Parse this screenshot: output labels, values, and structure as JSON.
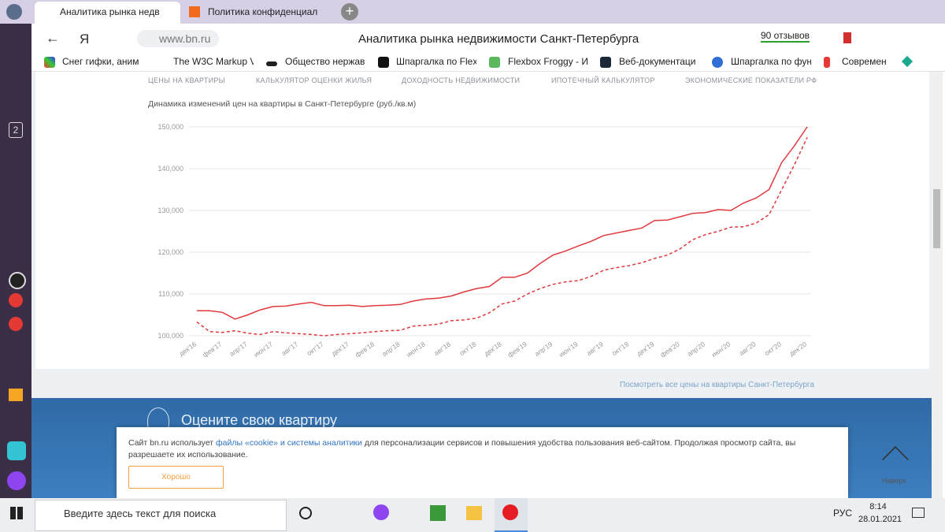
{
  "tabs": [
    "Аналитика рынка недв",
    "Политика конфиденциал"
  ],
  "sidebar_badge": "2",
  "address": {
    "yandex": "Я",
    "url": "www.bn.ru",
    "page_title": "Аналитика рынка недвижимости Санкт-Петербурга",
    "reviews": "90 отзывов"
  },
  "bookmarks": [
    "Снег гифки, аним",
    "The W3C Markup V",
    "Общество нержав",
    "Шпаргалка по Flex",
    "Flexbox Froggy - И",
    "Веб-документаци",
    "Шпаргалка по функц",
    "Современ"
  ],
  "site_nav": [
    "ЦЕНЫ НА КВАРТИРЫ",
    "КАЛЬКУЛЯТОР ОЦЕНКИ ЖИЛЬЯ",
    "ДОХОДНОСТЬ НЕДВИЖИМОСТИ",
    "ИПОТЕЧНЫЙ КАЛЬКУЛЯТОР",
    "ЭКОНОМИЧЕСКИЕ ПОКАЗАТЕЛИ РФ"
  ],
  "chart_data": {
    "type": "line",
    "title": "Динамика изменений цен на квартиры в Санкт-Петербурге (руб./кв.м)",
    "categories": [
      "дек'16",
      null,
      "фев'17",
      null,
      "апр'17",
      null,
      "июн'17",
      null,
      "авг'17",
      null,
      "окт'17",
      null,
      "дек'17",
      null,
      "фев'18",
      null,
      "апр'18",
      null,
      "июн'18",
      null,
      "авг'18",
      null,
      "окт'18",
      null,
      "дек'18",
      null,
      "фев'19",
      null,
      "апр'19",
      null,
      "июн'19",
      null,
      "авг'19",
      null,
      "окт'19",
      null,
      "дек'19",
      null,
      "фев'20",
      null,
      "апр'20",
      null,
      "июн'20",
      null,
      "авг'20",
      null,
      "окт'20",
      null,
      "дек'20"
    ],
    "series": [
      {
        "color": "#e0393e",
        "dashed": false,
        "values": [
          106000,
          106000,
          105600,
          104000,
          105000,
          106200,
          107000,
          107100,
          107600,
          108000,
          107200,
          107200,
          107300,
          107000,
          107200,
          107300,
          107500,
          108300,
          108800,
          109000,
          109500,
          110500,
          111300,
          111800,
          114000,
          114000,
          115000,
          117300,
          119300,
          120300,
          121500,
          122600,
          124000,
          124600,
          125200,
          125800,
          127600,
          127700,
          128500,
          129300,
          129500,
          130200,
          130000,
          131800,
          133000,
          135000,
          141500,
          145500,
          150000
        ]
      },
      {
        "color": "#e0393e",
        "dashed": true,
        "values": [
          103300,
          101000,
          100800,
          101200,
          100600,
          100300,
          101000,
          100700,
          100500,
          100300,
          100000,
          100300,
          100500,
          100700,
          101000,
          101200,
          101300,
          102300,
          102500,
          102800,
          103600,
          103800,
          104200,
          105500,
          107600,
          108300,
          110000,
          111300,
          112300,
          112900,
          113200,
          114200,
          115700,
          116300,
          116800,
          117500,
          118500,
          119300,
          120800,
          123000,
          124200,
          125000,
          126000,
          126100,
          127000,
          129000,
          135000,
          141000,
          147500
        ]
      }
    ],
    "ylim": [
      100000,
      150000
    ],
    "yticks": [
      {
        "value": 100000,
        "label": "100,000"
      },
      {
        "value": 110000,
        "label": "110,000"
      },
      {
        "value": 120000,
        "label": "120,000"
      },
      {
        "value": 130000,
        "label": "130,000"
      },
      {
        "value": 140000,
        "label": "140,000"
      },
      {
        "value": 150000,
        "label": "150,000"
      }
    ],
    "grid": true
  },
  "all_prices_link": "Посмотреть все цены на квартиры Санкт-Петербурга",
  "banner": "Оцените свою квартиру",
  "cookie": {
    "before": "Сайт bn.ru использует ",
    "link": "файлы «cookie» и системы аналитики",
    "after": " для персонализации сервисов и повышения удобства пользования веб-сайтом. Продолжая просмотр сайта, вы разрешаете их использование.",
    "button": "Хорошо"
  },
  "to_top": "Наверх",
  "taskbar": {
    "search": "Введите здесь текст для поиска",
    "lang": "РУС",
    "time": "8:14",
    "date": "28.01.2021"
  }
}
